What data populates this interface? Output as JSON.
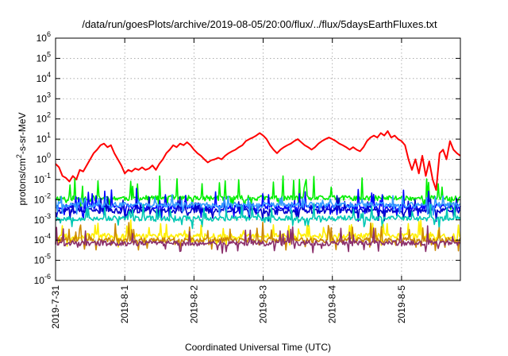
{
  "chart_data": {
    "type": "line",
    "title": "/data/run/goesPlots/archive/2019-08-05/20:00/flux/../flux/5daysEarthFluxes.txt",
    "xlabel": "Coordinated Universal Time (UTC)",
    "ylabel_main": "protons/cm",
    "ylabel_sup": "2",
    "ylabel_rest": "-s-sr-MeV",
    "yscale": "log",
    "ylim": [
      1e-06,
      1000000
    ],
    "xlim": [
      0,
      5.85
    ],
    "grid": true,
    "y_ticks": [
      {
        "exp": -6,
        "base": "10",
        "sup": "-6"
      },
      {
        "exp": -5,
        "base": "10",
        "sup": "-5"
      },
      {
        "exp": -4,
        "base": "10",
        "sup": "-4"
      },
      {
        "exp": -3,
        "base": "10",
        "sup": "-3"
      },
      {
        "exp": -2,
        "base": "10",
        "sup": "-2"
      },
      {
        "exp": -1,
        "base": "10",
        "sup": "-1"
      },
      {
        "exp": 0,
        "base": "10",
        "sup": "0"
      },
      {
        "exp": 1,
        "base": "10",
        "sup": "1"
      },
      {
        "exp": 2,
        "base": "10",
        "sup": "2"
      },
      {
        "exp": 3,
        "base": "10",
        "sup": "3"
      },
      {
        "exp": 4,
        "base": "10",
        "sup": "4"
      },
      {
        "exp": 5,
        "base": "10",
        "sup": "5"
      },
      {
        "exp": 6,
        "base": "10",
        "sup": "6"
      }
    ],
    "x_ticks": [
      {
        "day": 0,
        "label": "2019-7-31"
      },
      {
        "day": 1,
        "label": "2019-8-1"
      },
      {
        "day": 2,
        "label": "2019-8-2"
      },
      {
        "day": 3,
        "label": "2019-8-3"
      },
      {
        "day": 4,
        "label": "2019-8-4"
      },
      {
        "day": 5,
        "label": "2019-8-5"
      }
    ],
    "series": [
      {
        "color": "#ff0000",
        "points": [
          [
            0,
            0.6
          ],
          [
            0.05,
            0.4
          ],
          [
            0.1,
            0.15
          ],
          [
            0.15,
            0.12
          ],
          [
            0.2,
            0.08
          ],
          [
            0.25,
            0.15
          ],
          [
            0.3,
            0.1
          ],
          [
            0.35,
            0.3
          ],
          [
            0.4,
            0.25
          ],
          [
            0.45,
            0.5
          ],
          [
            0.5,
            1.0
          ],
          [
            0.55,
            2.0
          ],
          [
            0.6,
            3.0
          ],
          [
            0.65,
            5.0
          ],
          [
            0.7,
            6.0
          ],
          [
            0.75,
            4.0
          ],
          [
            0.8,
            5.0
          ],
          [
            0.85,
            2.0
          ],
          [
            0.9,
            1.0
          ],
          [
            0.95,
            0.5
          ],
          [
            1.0,
            0.2
          ],
          [
            1.05,
            0.3
          ],
          [
            1.1,
            0.25
          ],
          [
            1.15,
            0.35
          ],
          [
            1.2,
            0.3
          ],
          [
            1.25,
            0.4
          ],
          [
            1.3,
            0.3
          ],
          [
            1.35,
            0.35
          ],
          [
            1.4,
            0.5
          ],
          [
            1.45,
            0.3
          ],
          [
            1.5,
            0.6
          ],
          [
            1.55,
            1.0
          ],
          [
            1.6,
            2.0
          ],
          [
            1.65,
            3.0
          ],
          [
            1.7,
            5.0
          ],
          [
            1.75,
            4.0
          ],
          [
            1.8,
            6.0
          ],
          [
            1.85,
            5.0
          ],
          [
            1.9,
            7.0
          ],
          [
            1.95,
            5.0
          ],
          [
            2.0,
            3.0
          ],
          [
            2.05,
            2.0
          ],
          [
            2.1,
            1.5
          ],
          [
            2.15,
            1.0
          ],
          [
            2.2,
            0.7
          ],
          [
            2.25,
            0.9
          ],
          [
            2.3,
            1.0
          ],
          [
            2.35,
            1.2
          ],
          [
            2.4,
            1.0
          ],
          [
            2.45,
            1.5
          ],
          [
            2.5,
            2.0
          ],
          [
            2.55,
            2.5
          ],
          [
            2.6,
            3.0
          ],
          [
            2.65,
            4.0
          ],
          [
            2.7,
            5.0
          ],
          [
            2.75,
            8.0
          ],
          [
            2.8,
            10.0
          ],
          [
            2.85,
            12.0
          ],
          [
            2.9,
            15.0
          ],
          [
            2.95,
            20.0
          ],
          [
            3.0,
            15.0
          ],
          [
            3.05,
            10.0
          ],
          [
            3.1,
            5.0
          ],
          [
            3.15,
            3.0
          ],
          [
            3.2,
            2.0
          ],
          [
            3.25,
            3.0
          ],
          [
            3.3,
            4.0
          ],
          [
            3.35,
            5.0
          ],
          [
            3.4,
            6.0
          ],
          [
            3.45,
            8.0
          ],
          [
            3.5,
            10.0
          ],
          [
            3.55,
            7.0
          ],
          [
            3.6,
            5.0
          ],
          [
            3.65,
            4.0
          ],
          [
            3.7,
            3.0
          ],
          [
            3.75,
            4.0
          ],
          [
            3.8,
            6.0
          ],
          [
            3.85,
            8.0
          ],
          [
            3.9,
            10.0
          ],
          [
            3.95,
            12.0
          ],
          [
            4.0,
            10.0
          ],
          [
            4.05,
            8.0
          ],
          [
            4.1,
            6.0
          ],
          [
            4.15,
            5.0
          ],
          [
            4.2,
            4.0
          ],
          [
            4.25,
            3.0
          ],
          [
            4.3,
            4.0
          ],
          [
            4.35,
            3.0
          ],
          [
            4.4,
            2.5
          ],
          [
            4.45,
            4.0
          ],
          [
            4.5,
            8.0
          ],
          [
            4.55,
            12.0
          ],
          [
            4.6,
            15.0
          ],
          [
            4.65,
            12.0
          ],
          [
            4.7,
            20.0
          ],
          [
            4.75,
            15.0
          ],
          [
            4.8,
            25.0
          ],
          [
            4.85,
            12.0
          ],
          [
            4.9,
            15.0
          ],
          [
            4.95,
            10.0
          ],
          [
            5.0,
            8.0
          ],
          [
            5.05,
            5.0
          ],
          [
            5.1,
            1.0
          ],
          [
            5.15,
            0.3
          ],
          [
            5.2,
            1.0
          ],
          [
            5.25,
            0.2
          ],
          [
            5.3,
            1.5
          ],
          [
            5.35,
            0.15
          ],
          [
            5.4,
            0.8
          ],
          [
            5.45,
            0.1
          ],
          [
            5.5,
            0.03
          ],
          [
            5.55,
            2.0
          ],
          [
            5.6,
            3.0
          ],
          [
            5.65,
            1.0
          ],
          [
            5.7,
            8.0
          ],
          [
            5.75,
            3.0
          ],
          [
            5.8,
            2.0
          ],
          [
            5.85,
            1.5
          ]
        ]
      },
      {
        "color": "#00ee00",
        "base": 0.012,
        "amp": 6,
        "seed": 11
      },
      {
        "color": "#0000ff",
        "base": 0.0045,
        "amp": 4,
        "seed": 23
      },
      {
        "color": "#0000cc",
        "base": 0.0028,
        "amp": 3,
        "seed": 37
      },
      {
        "color": "#3399ff",
        "base": 0.0055,
        "amp": 1.6,
        "seed": 41
      },
      {
        "color": "#00c8b4",
        "base": 0.0012,
        "amp": 3,
        "seed": 53
      },
      {
        "color": "#ffee00",
        "base": 0.00016,
        "amp": 3,
        "seed": 67
      },
      {
        "color": "#cc8800",
        "base": 0.0001,
        "amp": 4,
        "seed": 71
      },
      {
        "color": "#8b2f6b",
        "base": 7e-05,
        "amp": 4,
        "seed": 89
      }
    ]
  }
}
